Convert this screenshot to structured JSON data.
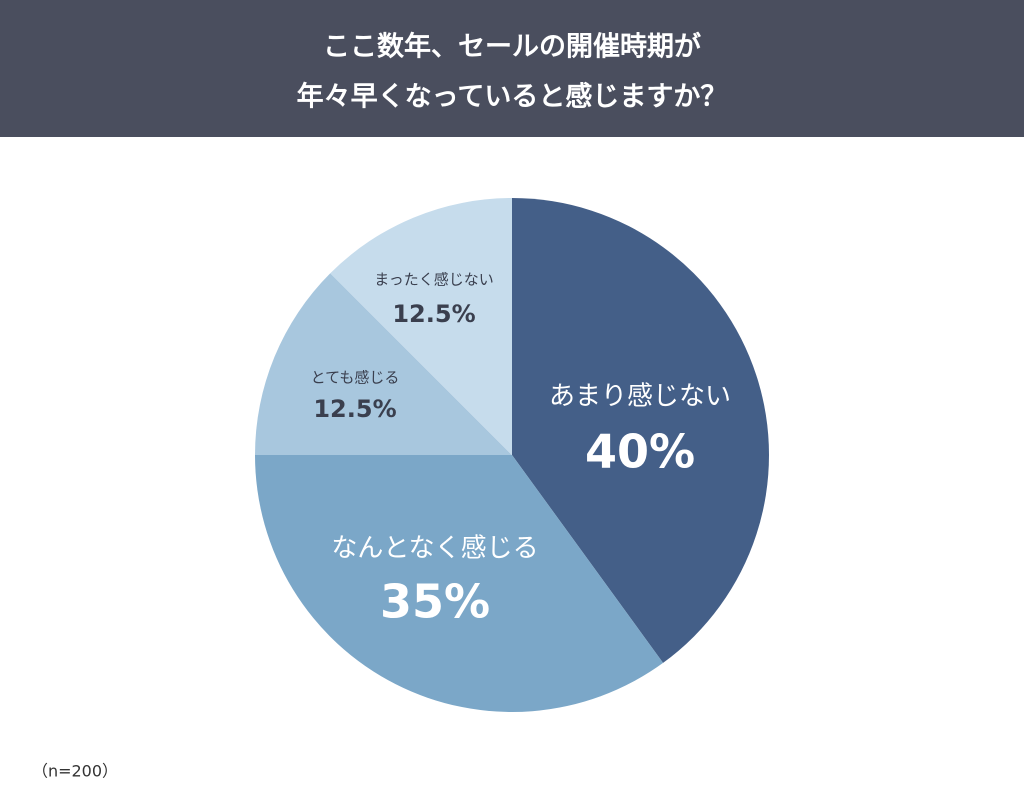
{
  "chart_data": {
    "type": "pie",
    "title": [
      "ここ数年、セールの開催時期が",
      "年々早くなっていると感じますか？"
    ],
    "categories": [
      "あまり感じない",
      "なんとなく感じる",
      "とても感じる",
      "まったく感じない"
    ],
    "values": [
      40,
      35,
      12.5,
      12.5
    ],
    "value_labels": [
      "40%",
      "35%",
      "12.5%",
      "12.5%"
    ],
    "colors": [
      "#445f88",
      "#7ba7c8",
      "#a8c7de",
      "#c6dcec"
    ],
    "note": "（n=200）"
  }
}
